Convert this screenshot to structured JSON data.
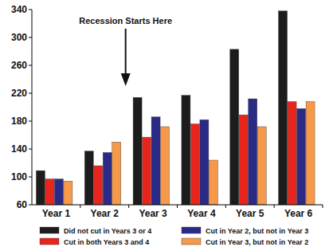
{
  "chart_data": {
    "type": "bar",
    "annotations": [
      "Recession Starts Here"
    ],
    "categories": [
      "Year 1",
      "Year 2",
      "Year 3",
      "Year 4",
      "Year 5",
      "Year 6"
    ],
    "series": [
      {
        "name": "Did not cut in Years 3 or 4",
        "color": "#1c1c1c",
        "values": [
          109,
          137,
          214,
          217,
          283,
          338
        ]
      },
      {
        "name": "Cut in both Years 3 and 4",
        "color": "#e8251d",
        "values": [
          97,
          116,
          157,
          176,
          189,
          208
        ]
      },
      {
        "name": "Cut in Year 2, but not in Year 3",
        "color": "#2b2a86",
        "values": [
          97,
          135,
          186,
          182,
          212,
          198
        ]
      },
      {
        "name": "Cut in Year 3, but not in Year 2",
        "color": "#f6994a",
        "values": [
          94,
          150,
          172,
          124,
          172,
          208
        ]
      }
    ],
    "ylim": [
      60,
      340
    ],
    "yticks": [
      60,
      100,
      140,
      180,
      220,
      260,
      300,
      340
    ],
    "grid": false,
    "legend": "bottom"
  }
}
